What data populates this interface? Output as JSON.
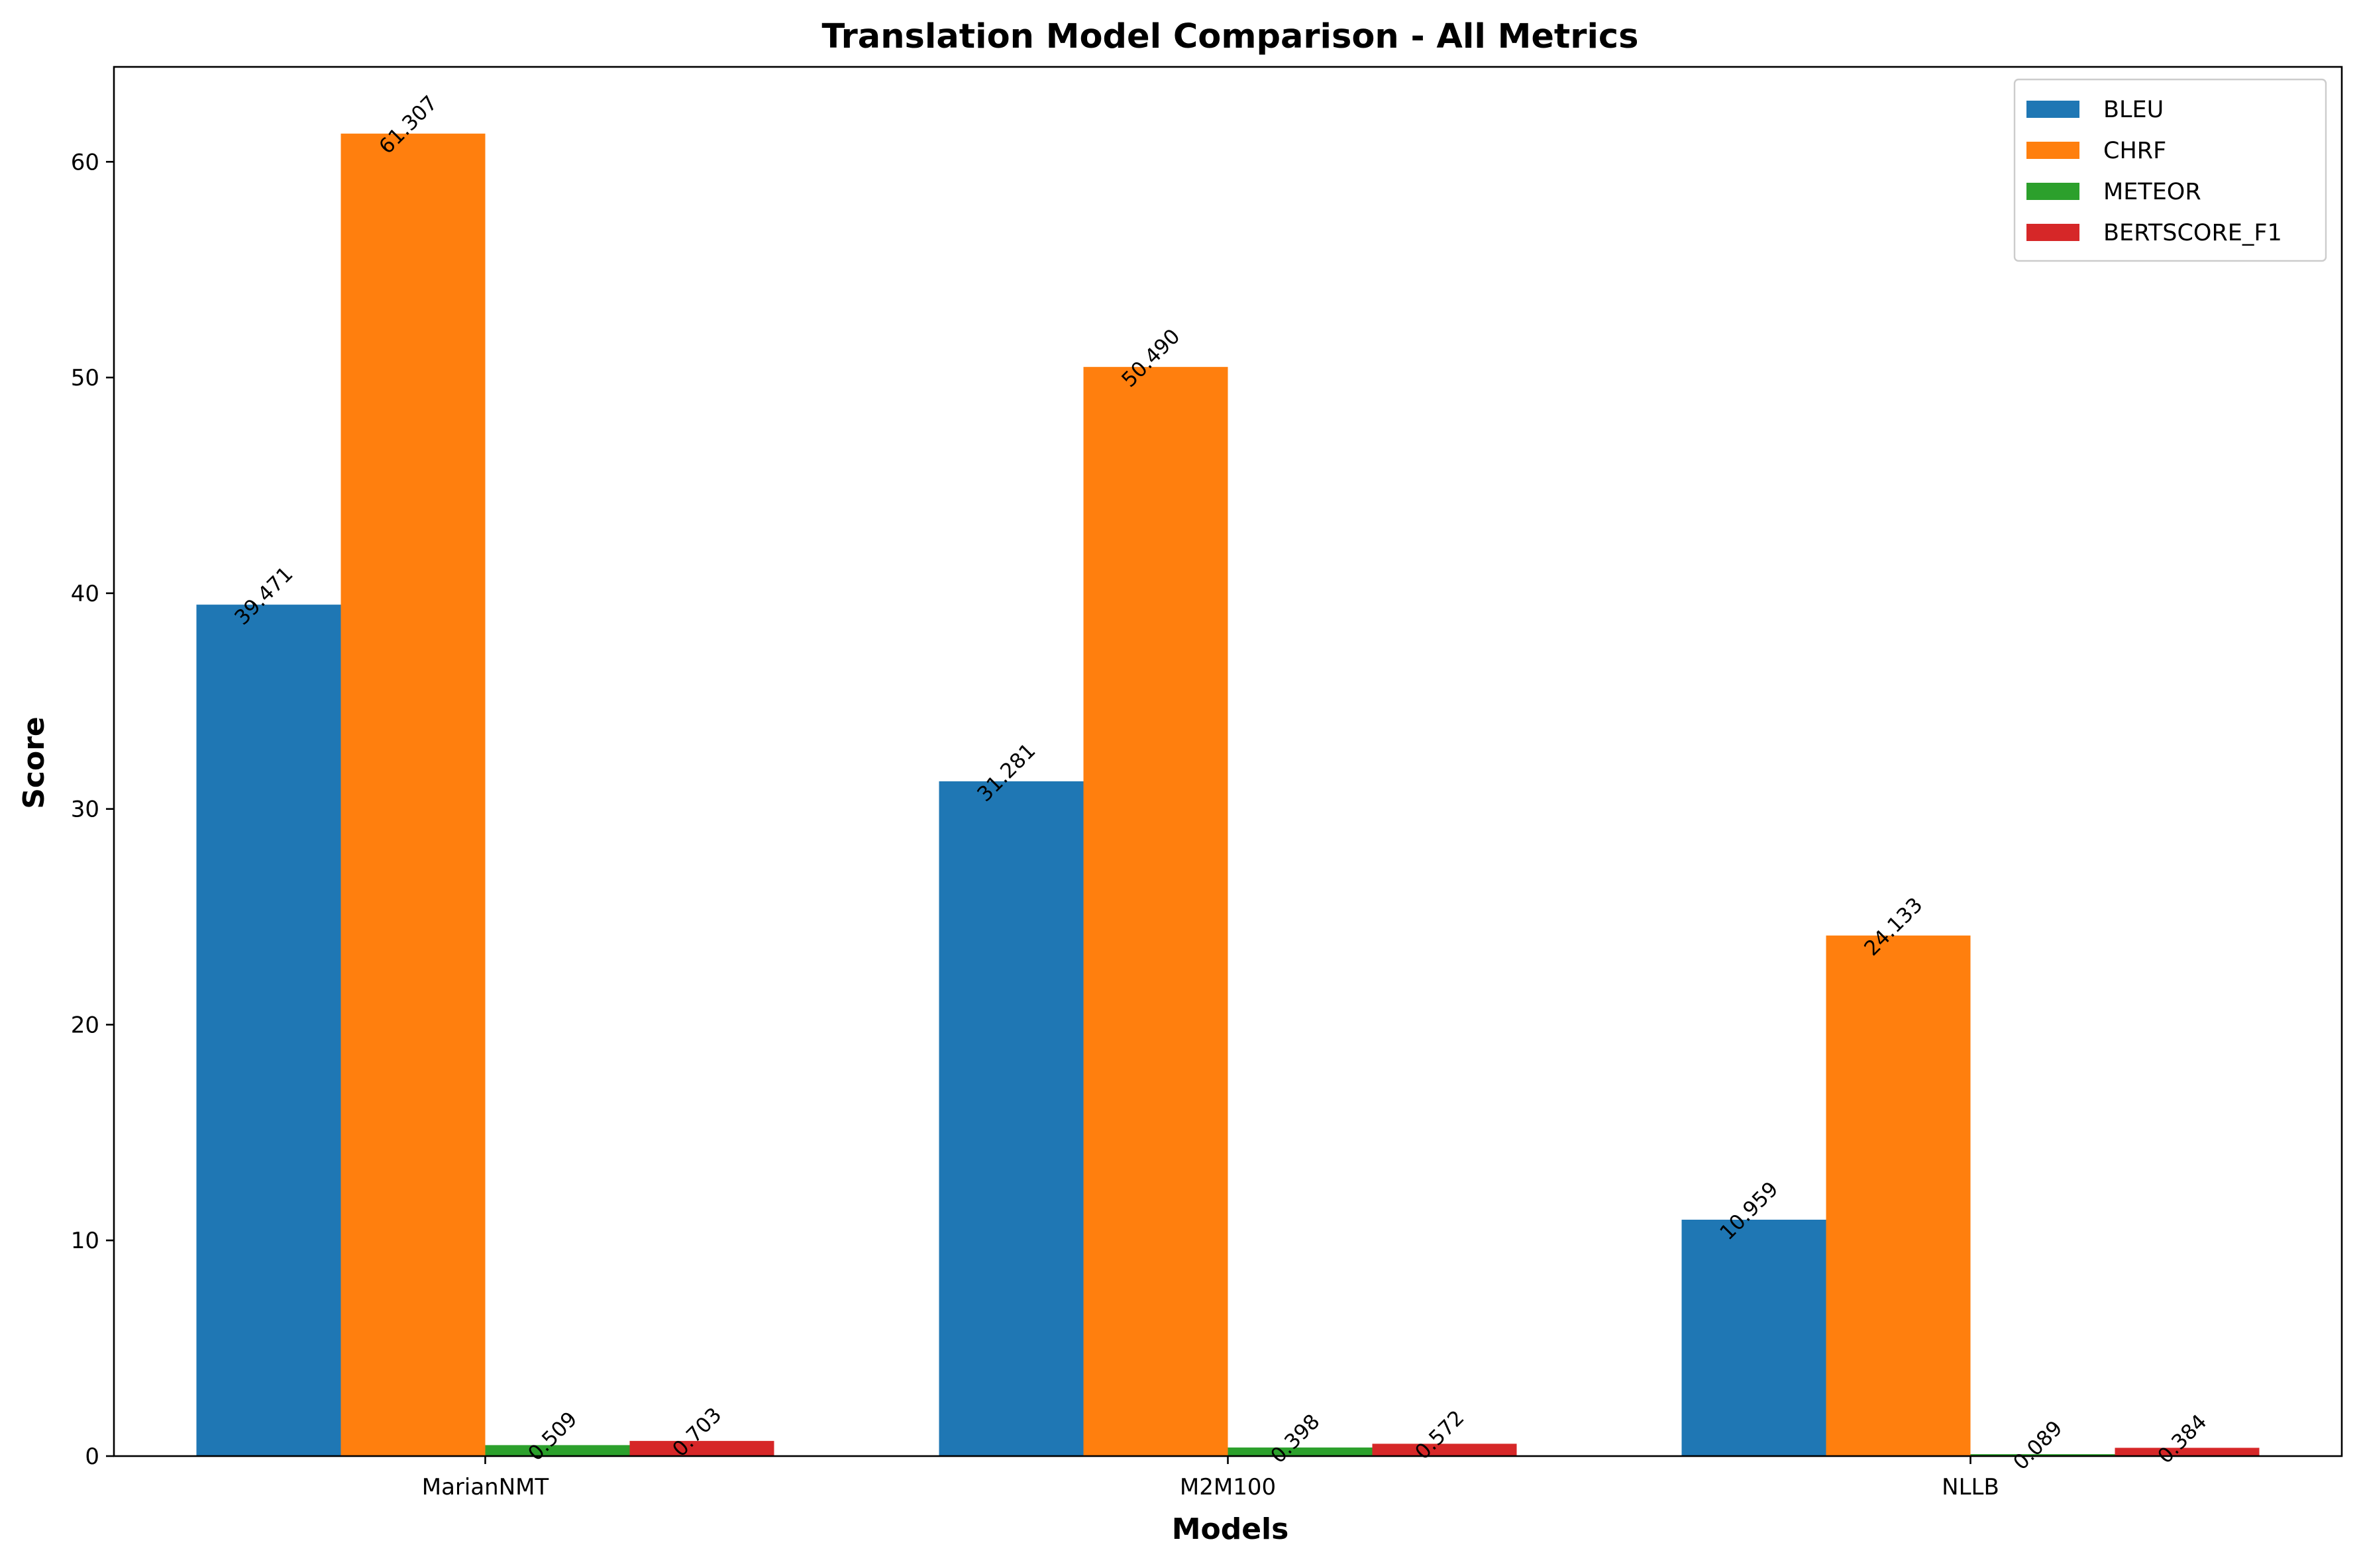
{
  "chart_data": {
    "type": "bar",
    "title": "Translation Model Comparison - All Metrics",
    "xlabel": "Models",
    "ylabel": "Score",
    "categories": [
      "MarianNMT",
      "M2M100",
      "NLLB"
    ],
    "ylim": [
      0,
      64.4
    ],
    "yticks": [
      0,
      10,
      20,
      30,
      40,
      50,
      60
    ],
    "grid": false,
    "legend_position": "top-right",
    "series": [
      {
        "name": "BLEU",
        "color": "#1f77b4",
        "values": [
          39.471,
          31.281,
          10.959
        ],
        "labels": [
          "39.471",
          "31.281",
          "10.959"
        ]
      },
      {
        "name": "CHRF",
        "color": "#ff7f0e",
        "values": [
          61.307,
          50.49,
          24.133
        ],
        "labels": [
          "61.307",
          "50.490",
          "24.133"
        ]
      },
      {
        "name": "METEOR",
        "color": "#2ca02c",
        "values": [
          0.509,
          0.398,
          0.089
        ],
        "labels": [
          "0.509",
          "0.398",
          "0.089"
        ]
      },
      {
        "name": "BERTSCORE_F1",
        "color": "#d62728",
        "values": [
          0.703,
          0.572,
          0.384
        ],
        "labels": [
          "0.703",
          "0.572",
          "0.384"
        ]
      }
    ]
  }
}
